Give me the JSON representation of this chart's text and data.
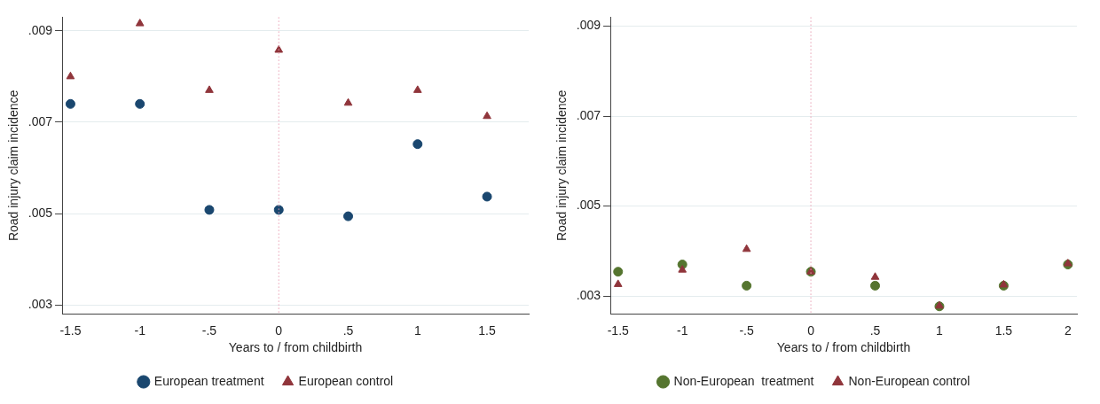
{
  "chart_data": [
    {
      "type": "scatter",
      "xlabel": "Years to / from childbirth",
      "ylabel": "Road injury claim incidence",
      "x": [
        -1.5,
        -1,
        -0.5,
        0,
        0.5,
        1,
        1.5
      ],
      "series": [
        {
          "name": "European treatment",
          "color": "#1a476f",
          "marker": "circle",
          "values": [
            0.0074,
            0.0074,
            0.00508,
            0.00508,
            0.00494,
            0.00652,
            0.00537
          ]
        },
        {
          "name": "European control",
          "color": "#90353b",
          "marker": "triangle",
          "values": [
            0.008,
            0.00916,
            0.0077,
            0.00858,
            0.00742,
            0.0077,
            0.00713
          ]
        }
      ],
      "xlim": [
        -1.56,
        1.8
      ],
      "xticks": [
        {
          "value": -1.5,
          "label": "-1.5"
        },
        {
          "value": -1,
          "label": "-1"
        },
        {
          "value": -0.5,
          "label": "-.5"
        },
        0,
        {
          "value": 0.5,
          "label": ".5"
        },
        1,
        {
          "value": 1.5,
          "label": "1.5"
        }
      ],
      "ylim": [
        0.0028,
        0.0093
      ],
      "yticks": [
        {
          "value": 0.003,
          "label": ".003"
        },
        {
          "value": 0.005,
          "label": ".005"
        },
        {
          "value": 0.007,
          "label": ".007"
        },
        {
          "value": 0.009,
          "label": ".009"
        }
      ],
      "grid": "y",
      "legend": "bottom",
      "ref_lines": [
        {
          "axis": "x",
          "value": 0,
          "color": "#e8a0b4",
          "line_style": "dotted"
        }
      ]
    },
    {
      "type": "scatter",
      "xlabel": "Years to / from childbirth",
      "ylabel": "Road injury claim incidence",
      "x": [
        -1.5,
        -1,
        -0.5,
        0,
        0.5,
        1,
        1.5,
        2
      ],
      "series": [
        {
          "name": "Non-European  treatment",
          "color": "#55752f",
          "marker": "circle",
          "values": [
            0.00354,
            0.0037,
            0.00323,
            0.00354,
            0.00323,
            0.00277,
            0.00323,
            0.0037
          ]
        },
        {
          "name": "Non-European control",
          "color": "#90353b",
          "marker": "triangle",
          "values": [
            0.00326,
            0.00358,
            0.00404,
            0.00354,
            0.00342,
            0.00278,
            0.00325,
            0.00372
          ]
        }
      ],
      "xlim": [
        -1.56,
        2.07
      ],
      "xticks": [
        {
          "value": -1.5,
          "label": "-1.5"
        },
        {
          "value": -1,
          "label": "-1"
        },
        {
          "value": -0.5,
          "label": "-.5"
        },
        0,
        {
          "value": 0.5,
          "label": ".5"
        },
        1,
        {
          "value": 1.5,
          "label": "1.5"
        },
        2
      ],
      "ylim": [
        0.0026,
        0.0092
      ],
      "yticks": [
        {
          "value": 0.003,
          "label": ".003"
        },
        {
          "value": 0.005,
          "label": ".005"
        },
        {
          "value": 0.007,
          "label": ".007"
        },
        {
          "value": 0.009,
          "label": ".009"
        }
      ],
      "grid": "y",
      "legend": "bottom",
      "ref_lines": [
        {
          "axis": "x",
          "value": 0,
          "color": "#e8a0b4",
          "line_style": "dotted"
        }
      ]
    }
  ]
}
